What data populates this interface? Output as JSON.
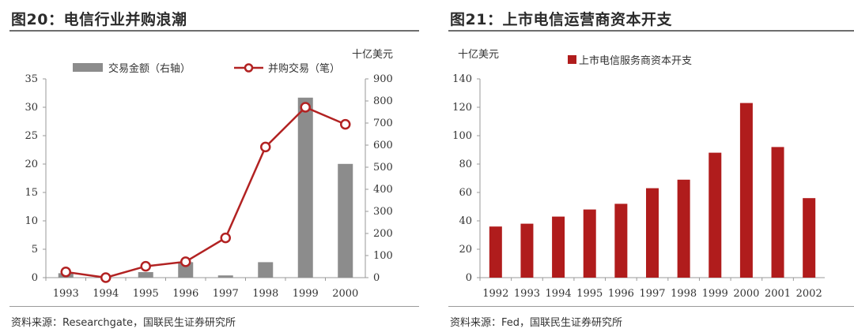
{
  "left": {
    "title": "图20：电信行业并购浪潮",
    "source": "资料来源：Researchgate，国联民生证券研究所",
    "unit": "十亿美元"
  },
  "right": {
    "title": "图21：上市电信运营商资本开支",
    "source": "资料来源：Fed，国联民生证券研究所",
    "unit": "十亿美元"
  },
  "colors": {
    "bar_gray": "#8c8c8c",
    "line_red": "#b22222",
    "bar_red": "#b01c1c",
    "rule": "#6e6e6e"
  },
  "chart_data": [
    {
      "type": "bar+line",
      "categories": [
        "1993",
        "1994",
        "1995",
        "1996",
        "1997",
        "1998",
        "1999",
        "2000"
      ],
      "series": [
        {
          "name": "交易金额（右轴）",
          "type": "bar",
          "axis": "right",
          "values": [
            20,
            0,
            25,
            70,
            10,
            70,
            815,
            515
          ]
        },
        {
          "name": "并购交易（笔）",
          "type": "line",
          "axis": "left",
          "values": [
            1,
            0,
            2,
            2.8,
            7,
            23,
            30,
            27
          ]
        }
      ],
      "y_left": {
        "ylim": [
          0,
          35
        ],
        "ticks": [
          "0",
          "5",
          "10",
          "15",
          "20",
          "25",
          "30",
          "35"
        ]
      },
      "y_right": {
        "ylim": [
          0,
          900
        ],
        "ticks": [
          "0",
          "100",
          "200",
          "300",
          "400",
          "500",
          "600",
          "700",
          "800",
          "900"
        ]
      },
      "legend": "top"
    },
    {
      "type": "bar",
      "categories": [
        "1992",
        "1993",
        "1994",
        "1995",
        "1996",
        "1997",
        "1998",
        "1999",
        "2000",
        "2001",
        "2002"
      ],
      "series": [
        {
          "name": "上市电信服务商资本开支",
          "values": [
            36,
            38,
            43,
            48,
            52,
            63,
            69,
            88,
            123,
            92,
            56
          ]
        }
      ],
      "ylim": [
        0,
        140
      ],
      "ticks": [
        "0",
        "20",
        "40",
        "60",
        "80",
        "100",
        "120",
        "140"
      ],
      "legend": "top"
    }
  ]
}
